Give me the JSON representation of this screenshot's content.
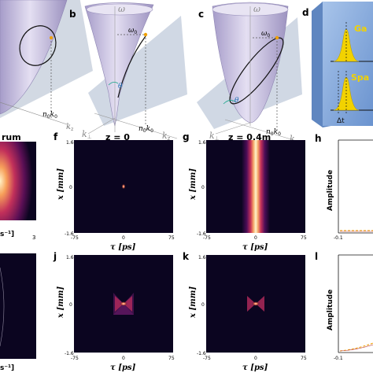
{
  "panels": {
    "a": {
      "k0_label": "n",
      "k0_sub": "0",
      "k0_tail": "k",
      "k0_tail_sub": "0",
      "kz": "k",
      "kz_sub": "z"
    },
    "b": {
      "letter": "b",
      "omega": "ω",
      "omega0": "ω",
      "omega0_sub": "0",
      "theta": "θ",
      "kperp": "k",
      "kperp_sub": "⊥",
      "nk": "n",
      "nk_sub": "0",
      "nk_tail": "k",
      "nk_tail_sub": "0",
      "kz": "k",
      "kz_sub": "z"
    },
    "c": {
      "letter": "c",
      "omega": "ω",
      "omega0": "ω",
      "omega0_sub": "0",
      "theta": "θ",
      "kperp": "k",
      "kperp_sub": "⊥",
      "nk": "n",
      "nk_sub": "0",
      "nk_tail": "k",
      "nk_tail_sub": "0",
      "kz": "k",
      "kz_sub": "z"
    },
    "d": {
      "letter": "d",
      "label_top": "Ga",
      "label_mid": "Spa",
      "delta_t": "Δt"
    },
    "e": {
      "title_fragment": "rum",
      "xtick_right": "3",
      "xlabel_fragment": "s⁻¹]"
    },
    "f": {
      "letter": "f",
      "title": "z = 0",
      "ylabel": "x [mm]",
      "xlabel": "τ [ps]",
      "yticks": [
        "1.6",
        "0",
        "-1.6"
      ],
      "xticks": [
        "-75",
        "0",
        "75"
      ]
    },
    "g": {
      "letter": "g",
      "title": "z = 0.4m",
      "ylabel": "x [mm]",
      "xlabel": "τ [ps]",
      "yticks": [
        "1.6",
        "0",
        "-1.6"
      ],
      "xticks": [
        "-75",
        "0",
        "75"
      ]
    },
    "h": {
      "letter": "h",
      "ylabel": "Amplitude",
      "xtick": "-0.1"
    },
    "j": {
      "letter": "j",
      "ylabel": "x [mm]",
      "xlabel": "τ [ps]",
      "yticks": [
        "1.6",
        "0",
        "-1.6"
      ],
      "xticks": [
        "-75",
        "0",
        "75"
      ]
    },
    "k": {
      "letter": "k",
      "ylabel": "x [mm]",
      "xlabel": "τ [ps]",
      "yticks": [
        "1.6",
        "0",
        "-1.6"
      ],
      "xticks": [
        "-75",
        "0",
        "75"
      ]
    },
    "l": {
      "letter": "l",
      "ylabel": "Amplitude",
      "xtick": "-0.1"
    },
    "i": {
      "xlabel_fragment": "s⁻¹]"
    }
  },
  "colors": {
    "cone_fill": "#c7bfe0",
    "cone_edge": "#8e86b3",
    "plane": "#b9c4d6",
    "heatmap_bg": "#0b0520",
    "heatmap_core": "#fff2c8",
    "box_face": "#7fa6d9",
    "pulse_yellow": "#f2d200"
  }
}
